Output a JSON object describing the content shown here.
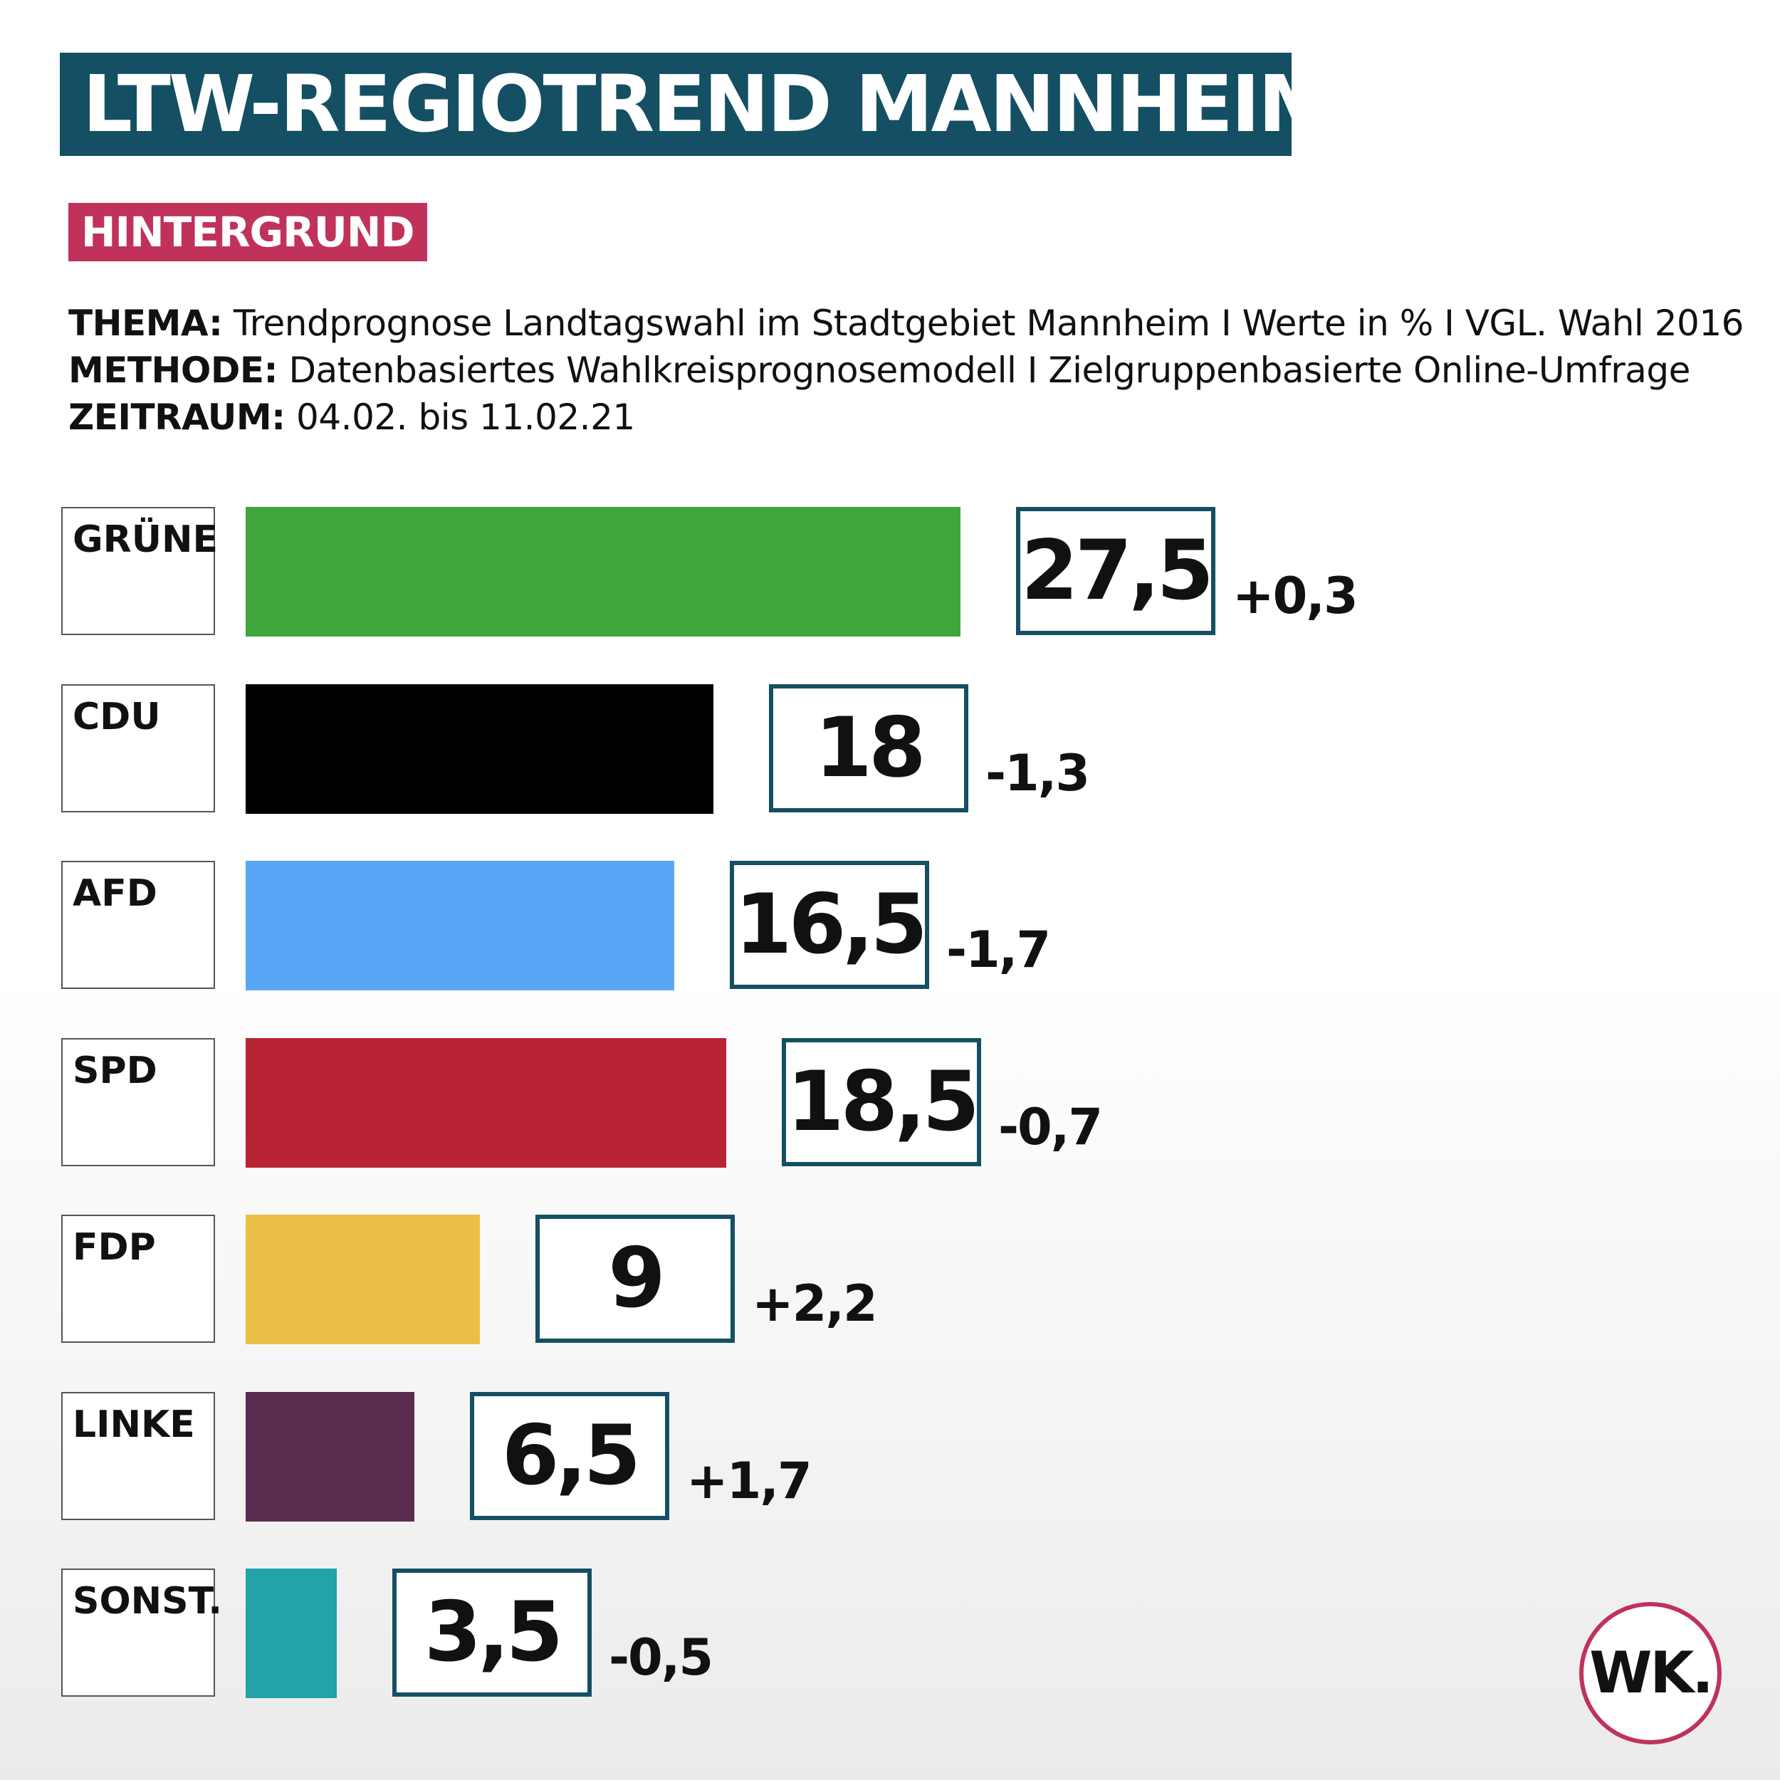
{
  "header": {
    "title": "LTW-REGIOTREND MANNHEIM.",
    "tag": "HINTERGRUND"
  },
  "meta": [
    {
      "label": "THEMA:",
      "text": "Trendprognose Landtagswahl im Stadtgebiet Mannheim I Werte in % I VGL. Wahl 2016"
    },
    {
      "label": "METHODE:",
      "text": "Datenbasiertes Wahlkreisprognosemodell I Zielgruppenbasierte Online-Umfrage"
    },
    {
      "label": "ZEITRAUM:",
      "text": "04.02. bis 11.02.21"
    }
  ],
  "chart_data": {
    "type": "bar",
    "orientation": "horizontal",
    "categories": [
      "GRÜNE",
      "CDU",
      "AFD",
      "SPD",
      "FDP",
      "LINKE",
      "SONST."
    ],
    "values": [
      27.5,
      18,
      16.5,
      18.5,
      9,
      6.5,
      3.5
    ],
    "value_labels": [
      "27,5",
      "18",
      "16,5",
      "18,5",
      "9",
      "6,5",
      "3,5"
    ],
    "changes": [
      "+0,3",
      "-1,3",
      "-1,7",
      "-0,7",
      "+2,2",
      "+1,7",
      "-0,5"
    ],
    "colors": [
      "#3ea63b",
      "#000000",
      "#5ba5f7",
      "#b82335",
      "#eabf45",
      "#5a2d50",
      "#23a2a7"
    ],
    "grid": false
  },
  "logo": {
    "text": "WK."
  },
  "colors": {
    "title_bg": "#144f63",
    "tag_bg": "#c0325a",
    "box_border": "#144f63",
    "logo_ring": "#c0325a"
  }
}
